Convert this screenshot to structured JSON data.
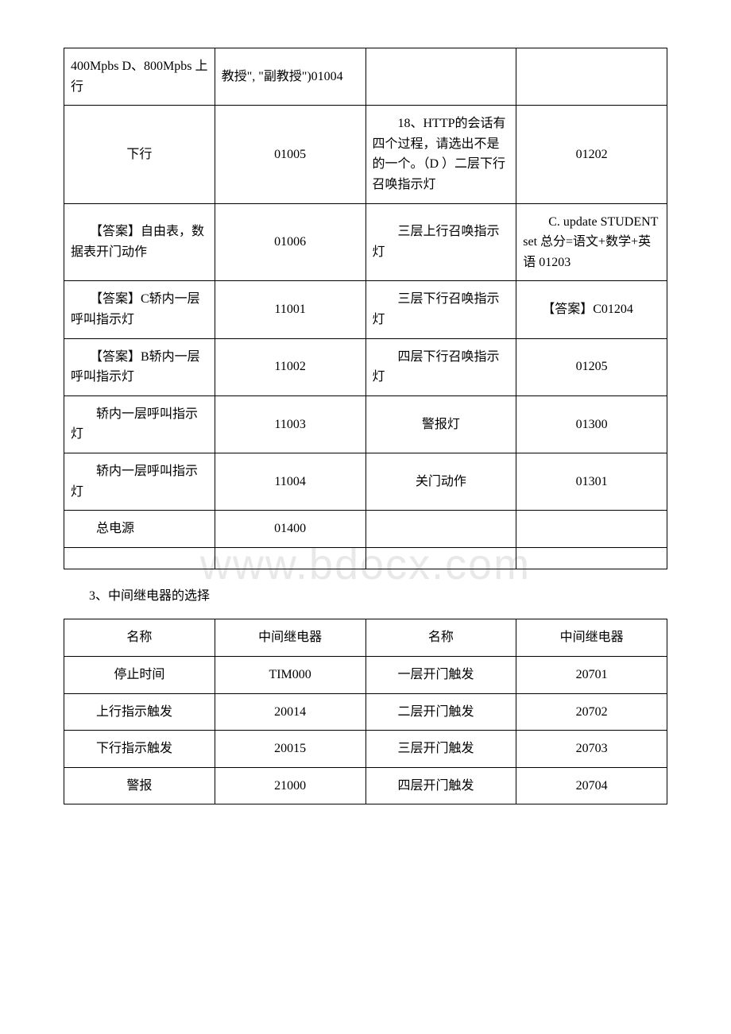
{
  "watermark": "www.bdocx.com",
  "table1": {
    "rows": [
      {
        "c1": "400Mpbs D、800Mpbs 上行",
        "c2": "教授\", \"副教授\")01004",
        "c3": "",
        "c4": ""
      },
      {
        "c1": "下行",
        "c2": "01005",
        "c3": "　　18、HTTP的会话有四个过程，请选出不是的一个。（D ）二层下行召唤指示灯",
        "c4": "01202"
      },
      {
        "c1": "　　【答案】自由表，数据表开门动作",
        "c2": "01006",
        "c3": "　　三层上行召唤指示灯",
        "c4": "　　C. update STUDENT set 总分=语文+数学+英语 01203"
      },
      {
        "c1": "　　【答案】C轿内一层呼叫指示灯",
        "c2": "11001",
        "c3": "　　三层下行召唤指示灯",
        "c4": "　　【答案】C01204"
      },
      {
        "c1": "　　【答案】B轿内一层呼叫指示灯",
        "c2": "11002",
        "c3": "　　四层下行召唤指示灯",
        "c4": "01205"
      },
      {
        "c1": "　　轿内一层呼叫指示灯",
        "c2": "11003",
        "c3": "警报灯",
        "c4": "01300"
      },
      {
        "c1": "　　轿内一层呼叫指示灯",
        "c2": "11004",
        "c3": "关门动作",
        "c4": "01301"
      },
      {
        "c1": "　　总电源",
        "c2": "01400",
        "c3": "",
        "c4": ""
      }
    ]
  },
  "section_heading": "3、中间继电器的选择",
  "table2": {
    "header": {
      "c1": "名称",
      "c2": "中间继电器",
      "c3": "名称",
      "c4": "中间继电器"
    },
    "rows": [
      {
        "c1": "停止时间",
        "c2": "TIM000",
        "c3": "　　一层开门触发",
        "c4": "20701"
      },
      {
        "c1": "　　上行指示触发",
        "c2": "20014",
        "c3": "　　二层开门触发",
        "c4": "20702"
      },
      {
        "c1": "　　下行指示触发",
        "c2": "20015",
        "c3": "　　三层开门触发",
        "c4": "20703"
      },
      {
        "c1": "警报",
        "c2": "21000",
        "c3": "　　四层开门触发",
        "c4": "20704"
      }
    ]
  }
}
